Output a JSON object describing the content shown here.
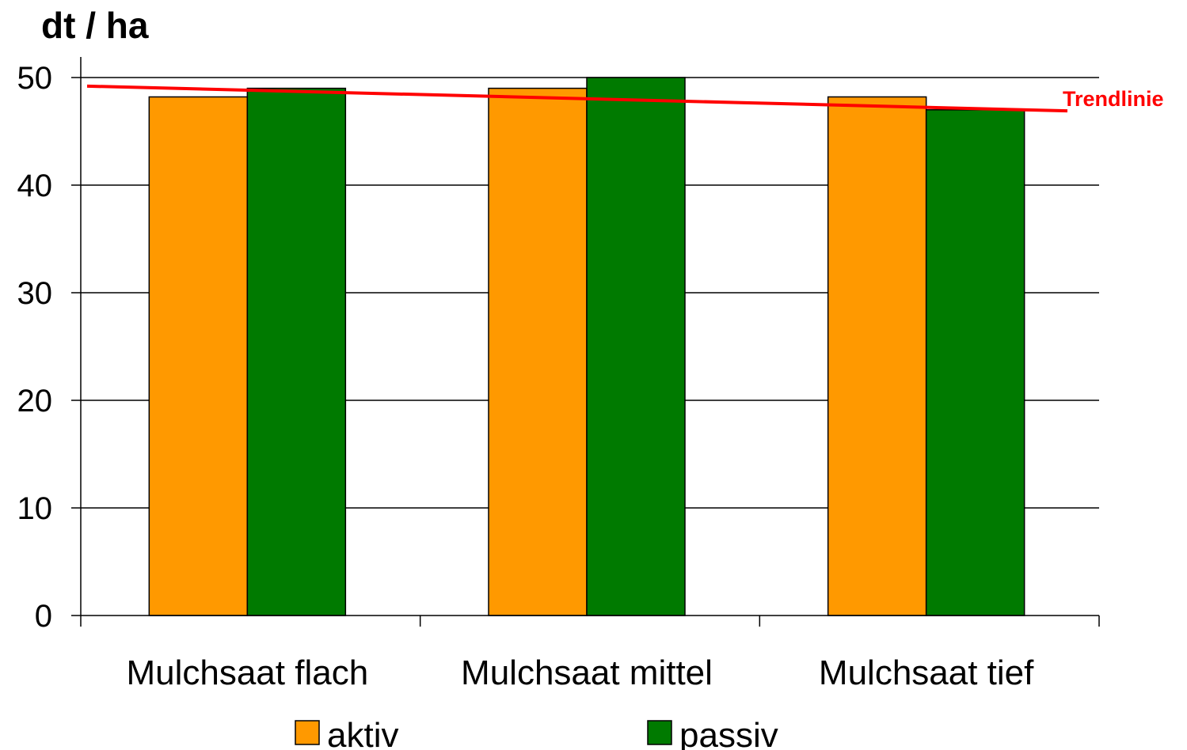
{
  "chart_data": {
    "type": "bar",
    "ylabel": "dt / ha",
    "categories": [
      "Mulchsaat flach",
      "Mulchsaat mittel",
      "Mulchsaat tief"
    ],
    "series": [
      {
        "name": "aktiv",
        "values": [
          48.2,
          49.0,
          48.2
        ],
        "color": "#FF9900"
      },
      {
        "name": "passiv",
        "values": [
          49.0,
          50.0,
          47.0
        ],
        "color": "#007A00"
      }
    ],
    "ylim": [
      0,
      50
    ],
    "yticks": [
      "0",
      "10",
      "20",
      "30",
      "40",
      "50"
    ],
    "grid": true,
    "legend": "bottom",
    "trendline": {
      "label": "Trendlinie",
      "start": 49.2,
      "end": 46.9,
      "color": "#FF0000"
    }
  }
}
